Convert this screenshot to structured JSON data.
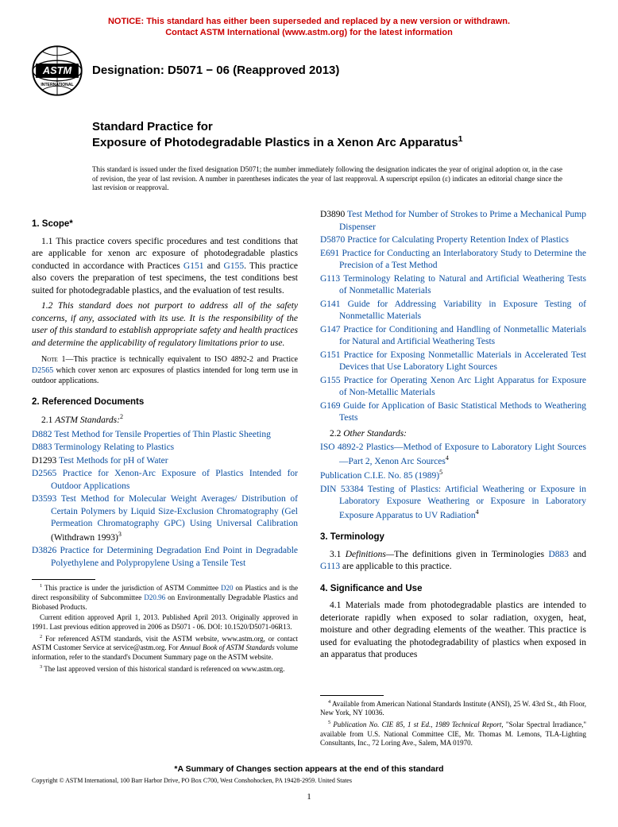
{
  "notice": {
    "line1": "NOTICE: This standard has either been superseded and replaced by a new version or withdrawn.",
    "line2": "Contact ASTM International (www.astm.org) for the latest information"
  },
  "header": {
    "designation_label": "Designation: D5071 − 06 (Reapproved 2013)"
  },
  "title": {
    "prefix": "Standard Practice for",
    "main": "Exposure of Photodegradable Plastics in a Xenon Arc Apparatus",
    "sup": "1"
  },
  "issue_note": "This standard is issued under the fixed designation D5071; the number immediately following the designation indicates the year of original adoption or, in the case of revision, the year of last revision. A number in parentheses indicates the year of last reapproval. A superscript epsilon (ε) indicates an editorial change since the last revision or reapproval.",
  "sections": {
    "scope": {
      "head": "1. Scope*",
      "p1_a": "1.1 This practice covers specific procedures and test conditions that are applicable for xenon arc exposure of photodegradable plastics conducted in accordance with Practices ",
      "g151": "G151",
      "p1_b": " and ",
      "g155": "G155",
      "p1_c": ". This practice also covers the preparation of test specimens, the test conditions best suited for photodegradable plastics, and the evaluation of test results.",
      "p2": "1.2 This standard does not purport to address all of the safety concerns, if any, associated with its use. It is the responsibility of the user of this standard to establish appropriate safety and health practices and determine the applicability of regulatory limitations prior to use.",
      "note_label": "Note 1—",
      "note_a": "This practice is technically equivalent to ISO 4892-2 and Practice ",
      "note_link": "D2565",
      "note_b": " which cover xenon arc exposures of plastics intended for long term use in outdoor applications."
    },
    "refdocs": {
      "head": "2. Referenced Documents",
      "astm_label_a": "2.1 ",
      "astm_label_b": "ASTM Standards:",
      "astm_sup": "2"
    },
    "terminology": {
      "head": "3. Terminology",
      "p1_a": "3.1 ",
      "p1_def": "Definitions—",
      "p1_b": "The definitions given in Terminologies ",
      "d883": "D883",
      "p1_c": " and ",
      "g113": "G113",
      "p1_d": " are applicable to this practice."
    },
    "significance": {
      "head": "4. Significance and Use",
      "p1": "4.1 Materials made from photodegradable plastics are intended to deteriorate rapidly when exposed to solar radiation, oxygen, heat, moisture and other degrading elements of the weather. This practice is used for evaluating the photodegradability of plastics when exposed in an apparatus that produces"
    },
    "other_label_a": "2.2 ",
    "other_label_b": "Other Standards:"
  },
  "refs_left": [
    {
      "code": "D882",
      "title": " Test Method for Tensile Properties of Thin Plastic Sheeting"
    },
    {
      "code": "D883",
      "title": " Terminology Relating to Plastics"
    },
    {
      "code": "D1293",
      "title": " Test Methods for pH of Water",
      "black_code": true
    },
    {
      "code": "D2565",
      "title": " Practice for Xenon-Arc Exposure of Plastics Intended for Outdoor Applications"
    },
    {
      "code": "D3593",
      "title": " Test Method for Molecular Weight Averages/ Distribution of Certain Polymers by Liquid Size-Exclusion Chromatography (Gel Permeation Chromatography GPC) Using Universal Calibration",
      "suffix": " (Withdrawn 1993)",
      "suffix_sup": "3"
    },
    {
      "code": "D3826",
      "title": " Practice for Determining Degradation End Point in Degradable Polyethylene and Polypropylene Using a Tensile Test"
    }
  ],
  "refs_right_astm": [
    {
      "code": "D3890",
      "title": " Test Method for Number of Strokes to Prime a Mechanical Pump Dispenser",
      "black_code": true
    },
    {
      "code": "D5870",
      "title": " Practice for Calculating Property Retention Index of Plastics"
    },
    {
      "code": "E691",
      "title": " Practice for Conducting an Interlaboratory Study to Determine the Precision of a Test Method"
    },
    {
      "code": "G113",
      "title": " Terminology Relating to Natural and Artificial Weathering Tests of Nonmetallic Materials"
    },
    {
      "code": "G141",
      "title": " Guide for Addressing Variability in Exposure Testing of Nonmetallic Materials"
    },
    {
      "code": "G147",
      "title": " Practice for Conditioning and Handling of Nonmetallic Materials for Natural and Artificial Weathering Tests"
    },
    {
      "code": "G151",
      "title": " Practice for Exposing Nonmetallic Materials in Accelerated Test Devices that Use Laboratory Light Sources"
    },
    {
      "code": "G155",
      "title": " Practice for Operating Xenon Arc Light Apparatus for Exposure of Non-Metallic Materials"
    },
    {
      "code": "G169",
      "title": " Guide for Application of Basic Statistical Methods to Weathering Tests"
    }
  ],
  "refs_other": [
    {
      "code": "ISO 4892-2",
      "title": " Plastics—Method of Exposure to Laboratory Light Sources—Part 2, Xenon Arc Sources",
      "sup": "4"
    },
    {
      "code": "Publication C.I.E. No. 85 (1989)",
      "title": "",
      "sup": "5",
      "code_only": true
    },
    {
      "code": "DIN 53384",
      "title": " Testing of Plastics: Artificial Weathering or Exposure in Laboratory Exposure Weathering or Exposure in Laboratory Exposure Apparatus to UV Radiation",
      "sup": "4"
    }
  ],
  "footnotes_left": {
    "f1_a": " This practice is under the jurisdiction of ASTM Committee ",
    "f1_link1": "D20",
    "f1_b": " on Plastics and is the direct responsibility of Subcommittee ",
    "f1_link2": "D20.96",
    "f1_c": " on Environmentally Degradable Plastics and Biobased Products.",
    "f1_d": "Current edition approved April 1, 2013. Published April 2013. Originally approved in 1991. Last previous edition approved in 2006 as D5071 - 06. DOI: 10.1520/D5071-06R13.",
    "f2_a": " For referenced ASTM standards, visit the ASTM website, www.astm.org, or contact ASTM Customer Service at service@astm.org. For ",
    "f2_b": "Annual Book of ASTM Standards",
    "f2_c": " volume information, refer to the standard's Document Summary page on the ASTM website.",
    "f3": " The last approved version of this historical standard is referenced on www.astm.org."
  },
  "footnotes_right": {
    "f4": " Available from American National Standards Institute (ANSI), 25 W. 43rd St., 4th Floor, New York, NY 10036.",
    "f5_a": " Publication No. CIE 85, 1 st Ed., 1989 Technical Report,",
    "f5_b": " \"Solar Spectral Irradiance,\" available from U.S. National Committee CIE, Mr. Thomas M. Lemons, TLA-Lighting Consultants, Inc., 72 Loring Ave., Salem, MA 01970."
  },
  "changes_note": "*A Summary of Changes section appears at the end of this standard",
  "copyright": "Copyright © ASTM International, 100 Barr Harbor Drive, PO Box C700, West Conshohocken, PA 19428-2959. United States",
  "page_number": "1",
  "colors": {
    "notice": "#cc0000",
    "link": "#0a4ea0"
  }
}
